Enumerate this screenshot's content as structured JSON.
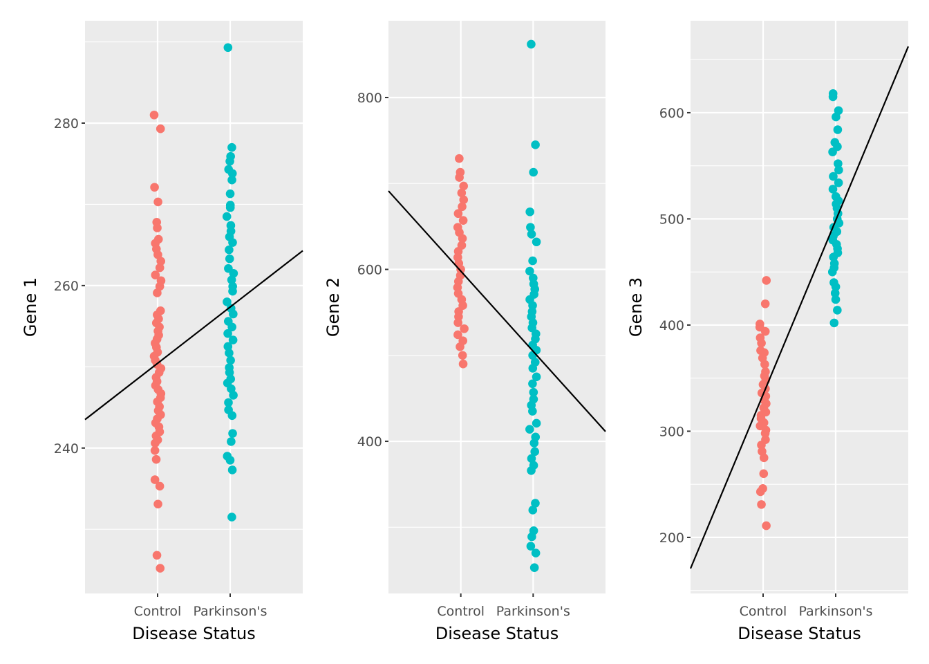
{
  "colors": {
    "panel_bg": "#ebebeb",
    "grid": "#ffffff",
    "control": "#f8766d",
    "parkinsons": "#00bfc4",
    "fit_line": "#000000",
    "tick_text": "#4d4d4d"
  },
  "chart_data": [
    {
      "type": "scatter",
      "title": "",
      "xlabel": "Disease Status",
      "ylabel": "Gene 1",
      "categories": [
        "Control",
        "Parkinson's"
      ],
      "ylim": [
        222.1,
        292.6
      ],
      "yticks": [
        240,
        260,
        280
      ],
      "yminor": [
        230,
        250,
        270,
        290
      ],
      "grid": true,
      "fit_line": {
        "intercept": 243.5,
        "slope": 6.93,
        "x_range": [
          0,
          3
        ]
      },
      "series": [
        {
          "name": "Control",
          "x": 1,
          "values": [
            281.0,
            279.3,
            272.1,
            270.3,
            267.8,
            267.1,
            265.7,
            265.2,
            264.5,
            263.8,
            263.0,
            262.2,
            261.3,
            260.6,
            259.9,
            259.1,
            256.9,
            256.4,
            255.9,
            255.4,
            254.9,
            254.4,
            253.9,
            253.4,
            252.9,
            252.4,
            251.8,
            251.3,
            250.8,
            250.3,
            249.8,
            249.3,
            248.7,
            248.2,
            247.7,
            247.2,
            246.7,
            246.2,
            245.7,
            245.1,
            244.6,
            244.1,
            243.6,
            243.1,
            242.6,
            242.0,
            241.5,
            241.0,
            240.6,
            239.7,
            238.6,
            236.1,
            235.3,
            233.1,
            226.8,
            225.2
          ]
        },
        {
          "name": "Parkinson's",
          "x": 2,
          "values": [
            289.3,
            277.0,
            275.9,
            275.3,
            274.3,
            273.8,
            273.0,
            271.3,
            269.9,
            269.6,
            268.5,
            267.4,
            266.7,
            266.0,
            265.3,
            264.4,
            263.3,
            262.1,
            261.5,
            260.7,
            259.9,
            259.3,
            258.0,
            257.2,
            256.5,
            255.6,
            254.9,
            254.1,
            253.3,
            252.5,
            251.7,
            250.8,
            249.9,
            249.3,
            248.5,
            248.0,
            247.3,
            246.5,
            245.6,
            244.7,
            244.0,
            241.8,
            240.8,
            239.0,
            238.5,
            237.3,
            231.5
          ]
        }
      ]
    },
    {
      "type": "scatter",
      "title": "",
      "xlabel": "Disease Status",
      "ylabel": "Gene 2",
      "categories": [
        "Control",
        "Parkinson's"
      ],
      "ylim": [
        223,
        889.3
      ],
      "yticks": [
        400,
        600,
        800
      ],
      "yminor": [
        300,
        500,
        700
      ],
      "grid": true,
      "fit_line": {
        "intercept": 691.3,
        "slope": -93.3,
        "x_range": [
          0,
          3
        ]
      },
      "series": [
        {
          "name": "Control",
          "x": 1,
          "values": [
            729,
            713,
            707,
            697,
            689,
            681,
            673,
            665,
            657,
            649,
            643,
            636,
            628,
            621,
            614,
            607,
            600,
            593,
            586,
            579,
            572,
            565,
            558,
            551,
            545,
            538,
            531,
            524,
            517,
            510,
            500,
            490
          ]
        },
        {
          "name": "Parkinson's",
          "x": 2,
          "values": [
            862,
            745,
            713,
            667,
            649,
            641,
            632,
            610,
            598,
            590,
            583,
            577,
            571,
            565,
            558,
            551,
            545,
            538,
            532,
            525,
            519,
            512,
            506,
            500,
            492,
            485,
            475,
            467,
            457,
            449,
            442,
            435,
            421,
            414,
            405,
            398,
            388,
            380,
            372,
            366,
            328,
            320,
            296,
            289,
            278,
            270,
            253
          ]
        }
      ]
    },
    {
      "type": "scatter",
      "title": "",
      "xlabel": "Disease Status",
      "ylabel": "Gene 3",
      "categories": [
        "Control",
        "Parkinson's"
      ],
      "ylim": [
        147.2,
        686.6
      ],
      "yticks": [
        200,
        300,
        400,
        500,
        600
      ],
      "yminor": [
        150,
        250,
        350,
        450,
        550,
        650
      ],
      "grid": true,
      "fit_line": {
        "intercept": 170.7,
        "slope": 163.9,
        "x_range": [
          0,
          3
        ]
      },
      "series": [
        {
          "name": "Control",
          "x": 1,
          "values": [
            442,
            420,
            401,
            398,
            394,
            388,
            383,
            376,
            374,
            369,
            363,
            356,
            352,
            348,
            344,
            340,
            336,
            333,
            329,
            326,
            322,
            318,
            315,
            312,
            308,
            305,
            301,
            298,
            292,
            287,
            281,
            275,
            260,
            246,
            243,
            231,
            211
          ]
        },
        {
          "name": "Parkinson's",
          "x": 2,
          "values": [
            618,
            615,
            602,
            596,
            584,
            572,
            568,
            563,
            552,
            546,
            540,
            534,
            528,
            521,
            517,
            514,
            510,
            505,
            500,
            496,
            492,
            488,
            484,
            480,
            476,
            472,
            468,
            464,
            458,
            454,
            450,
            440,
            436,
            430,
            424,
            414,
            402
          ]
        }
      ]
    }
  ]
}
